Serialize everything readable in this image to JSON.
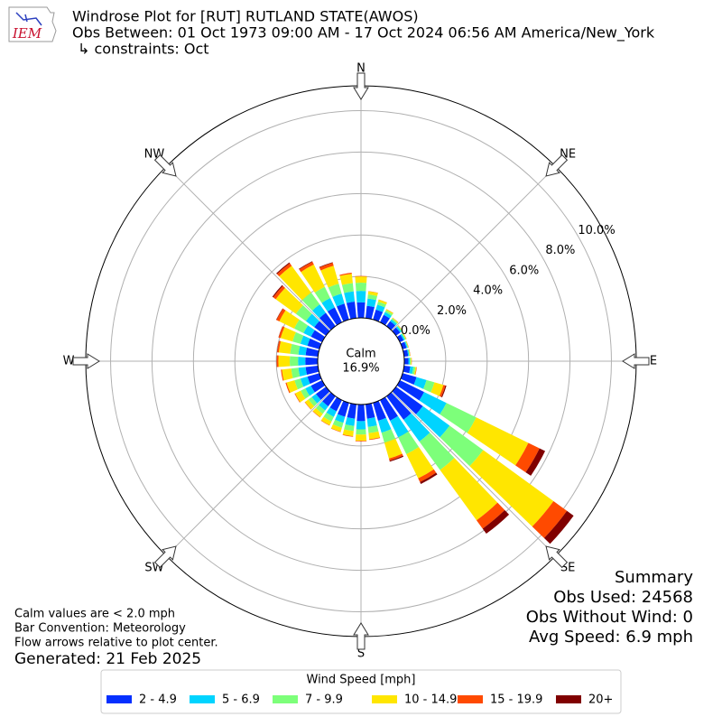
{
  "logo_text": "IEM",
  "chart_data": {
    "type": "windrose",
    "title_lines": [
      "Windrose Plot for [RUT] RUTLAND STATE(AWOS)",
      "Obs Between: 01 Oct 1973 09:00 AM - 17 Oct 2024 06:56 AM America/New_York",
      "↳ constraints: Oct"
    ],
    "compass": [
      "N",
      "NE",
      "E",
      "SE",
      "S",
      "SW",
      "W",
      "NW"
    ],
    "x": [
      0,
      10,
      20,
      30,
      40,
      50,
      60,
      70,
      80,
      90,
      100,
      110,
      120,
      130,
      140,
      150,
      160,
      170,
      180,
      190,
      200,
      210,
      220,
      230,
      240,
      250,
      260,
      270,
      280,
      290,
      300,
      310,
      320,
      330,
      340,
      350
    ],
    "rlim": [
      0,
      11.2
    ],
    "rticks": [
      {
        "value": 0,
        "label": "0.0%"
      },
      {
        "value": 2,
        "label": "2.0%"
      },
      {
        "value": 4,
        "label": "4.0%"
      },
      {
        "value": 6,
        "label": "6.0%"
      },
      {
        "value": 8,
        "label": "8.0%"
      },
      {
        "value": 10,
        "label": "10.0%"
      }
    ],
    "grid": true,
    "calm": {
      "label": "Calm",
      "value": 16.9,
      "value_label": "16.9%"
    },
    "legend_title": "Wind Speed [mph]",
    "series": [
      {
        "name": "2 - 4.9",
        "color": "#0530ff",
        "values": [
          0.75,
          0.6,
          0.5,
          0.4,
          0.3,
          0.25,
          0.2,
          0.2,
          0.2,
          0.2,
          0.3,
          0.7,
          1.3,
          1.6,
          1.4,
          1.1,
          0.9,
          0.7,
          0.8,
          0.7,
          0.7,
          0.6,
          0.6,
          0.6,
          0.6,
          0.6,
          0.6,
          0.6,
          0.6,
          0.6,
          0.6,
          0.7,
          0.8,
          0.8,
          0.8,
          0.8
        ]
      },
      {
        "name": "5 - 6.9",
        "color": "#00d4ff",
        "values": [
          0.55,
          0.35,
          0.25,
          0.15,
          0.1,
          0.08,
          0.07,
          0.05,
          0.05,
          0.07,
          0.15,
          0.5,
          1.2,
          1.6,
          1.3,
          0.9,
          0.6,
          0.4,
          0.4,
          0.35,
          0.3,
          0.3,
          0.25,
          0.25,
          0.3,
          0.35,
          0.35,
          0.35,
          0.35,
          0.35,
          0.4,
          0.5,
          0.5,
          0.5,
          0.5,
          0.5
        ]
      },
      {
        "name": "7 - 9.9",
        "color": "#7dff7a",
        "values": [
          0.4,
          0.2,
          0.15,
          0.1,
          0.07,
          0.05,
          0.05,
          0.03,
          0.03,
          0.05,
          0.1,
          0.4,
          1.6,
          2.0,
          1.7,
          0.9,
          0.5,
          0.3,
          0.25,
          0.25,
          0.25,
          0.25,
          0.2,
          0.2,
          0.25,
          0.3,
          0.35,
          0.4,
          0.4,
          0.4,
          0.5,
          0.6,
          0.7,
          0.6,
          0.5,
          0.4
        ]
      },
      {
        "name": "10 - 14.9",
        "color": "#ffe600",
        "values": [
          0.3,
          0.15,
          0.1,
          0.05,
          0.03,
          0.02,
          0.03,
          0.02,
          0.02,
          0.03,
          0.05,
          0.45,
          2.8,
          4.2,
          3.0,
          1.3,
          0.8,
          0.3,
          0.3,
          0.25,
          0.2,
          0.2,
          0.2,
          0.2,
          0.3,
          0.4,
          0.45,
          0.55,
          0.55,
          0.6,
          0.8,
          1.2,
          1.6,
          1.2,
          0.9,
          0.45
        ]
      },
      {
        "name": "15 - 19.9",
        "color": "#ff4a00",
        "values": [
          0.02,
          0.01,
          0.01,
          0.01,
          0.01,
          0.01,
          0.01,
          0.01,
          0.01,
          0.01,
          0.02,
          0.1,
          0.6,
          0.8,
          0.5,
          0.2,
          0.1,
          0.03,
          0.03,
          0.03,
          0.02,
          0.02,
          0.02,
          0.02,
          0.03,
          0.05,
          0.05,
          0.08,
          0.08,
          0.1,
          0.15,
          0.15,
          0.15,
          0.15,
          0.15,
          0.05
        ]
      },
      {
        "name": "20+",
        "color": "#800000",
        "values": [
          0,
          0,
          0,
          0,
          0,
          0,
          0,
          0,
          0,
          0,
          0,
          0.05,
          0.3,
          0.4,
          0.3,
          0.1,
          0.05,
          0,
          0,
          0,
          0,
          0,
          0,
          0,
          0,
          0,
          0,
          0.01,
          0.01,
          0.01,
          0.02,
          0.05,
          0.05,
          0.03,
          0.03,
          0
        ]
      }
    ],
    "summary": [
      "Summary",
      "Obs Used: 24568",
      "Obs Without Wind: 0",
      "Avg Speed: 6.9 mph"
    ],
    "notes": [
      "Calm values are < 2.0 mph",
      "Bar Convention: Meteorology",
      "Flow arrows relative to plot center."
    ],
    "generated": "Generated: 21 Feb 2025"
  }
}
